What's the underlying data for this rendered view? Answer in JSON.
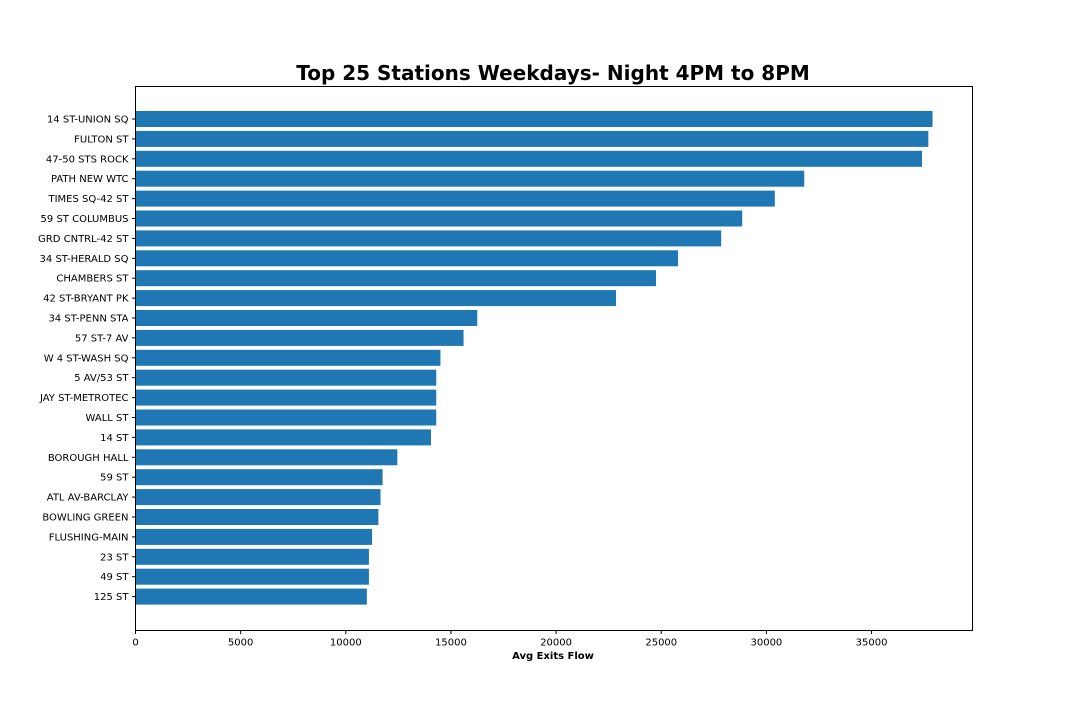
{
  "chart_data": {
    "type": "bar",
    "orientation": "horizontal",
    "title": "Top 25 Stations Weekdays- Night 4PM to 8PM",
    "xlabel": "Avg Exits Flow",
    "ylabel": "",
    "xlim": [
      0,
      39800
    ],
    "xticks": [
      0,
      5000,
      10000,
      15000,
      20000,
      25000,
      30000,
      35000
    ],
    "grid": false,
    "legend": "none",
    "bar_color": "#1f77b4",
    "categories": [
      "14 ST-UNION SQ",
      "FULTON ST",
      "47-50 STS ROCK",
      "PATH NEW WTC",
      "TIMES SQ-42 ST",
      "59 ST COLUMBUS",
      "GRD CNTRL-42 ST",
      "34 ST-HERALD SQ",
      "CHAMBERS ST",
      "42 ST-BRYANT PK",
      "34 ST-PENN STA",
      "57 ST-7 AV",
      "W 4 ST-WASH SQ",
      "5 AV/53 ST",
      "JAY ST-METROTEC",
      "WALL ST",
      "14 ST",
      "BOROUGH HALL",
      "59 ST",
      "ATL AV-BARCLAY",
      "BOWLING GREEN",
      "FLUSHING-MAIN",
      "23 ST",
      "49 ST",
      "125 ST"
    ],
    "values": [
      37900,
      37700,
      37400,
      31800,
      30400,
      28850,
      27850,
      25800,
      24750,
      22850,
      16250,
      15600,
      14500,
      14300,
      14300,
      14300,
      14050,
      12450,
      11750,
      11650,
      11550,
      11250,
      11100,
      11100,
      11000
    ]
  }
}
